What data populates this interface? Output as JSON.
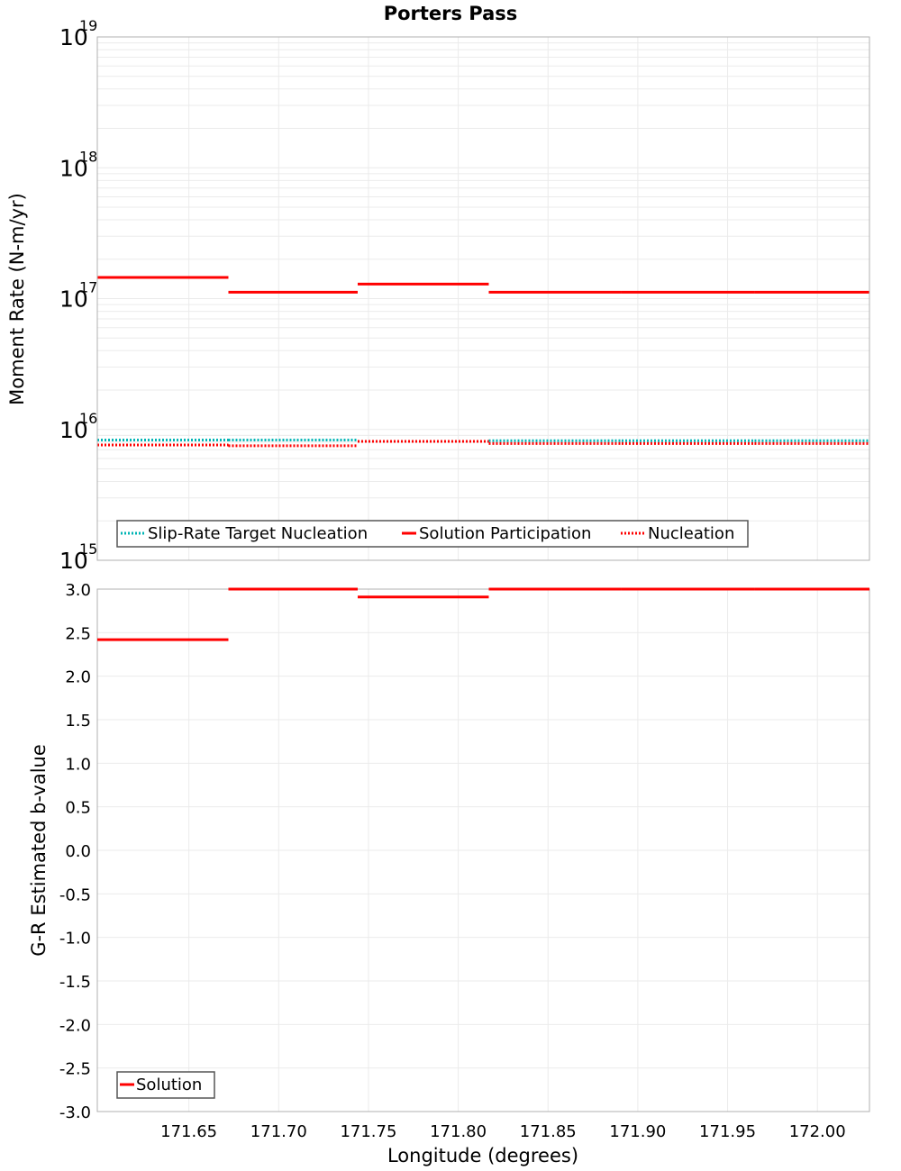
{
  "chart_data": [
    {
      "type": "line",
      "title": "Porters Pass",
      "xlabel": "",
      "ylabel": "Moment Rate (N-m/yr)",
      "yscale": "log",
      "ylim": [
        1000000000000000.0,
        1e+19
      ],
      "xlim": [
        171.599,
        172.029
      ],
      "y_ticks": [
        {
          "base": "10",
          "exp": "19",
          "value": 1e+19
        },
        {
          "base": "10",
          "exp": "18",
          "value": 1e+18
        },
        {
          "base": "10",
          "exp": "17",
          "value": 1e+17
        },
        {
          "base": "10",
          "exp": "16",
          "value": 1e+16
        },
        {
          "base": "10",
          "exp": "15",
          "value": 1000000000000000.0
        }
      ],
      "grid": true,
      "legend_position": "lower-left",
      "segment_edges": [
        171.599,
        171.672,
        171.744,
        171.817,
        171.891,
        171.965,
        172.029
      ],
      "series": [
        {
          "name": "Slip-Rate Target Nucleation",
          "color": "#00b4b4",
          "style": "dotted",
          "values": [
            8300000000000000.0,
            8300000000000000.0,
            8100000000000000.0,
            8200000000000000.0,
            8200000000000000.0,
            8200000000000000.0
          ]
        },
        {
          "name": "Solution Participation",
          "color": "#ff0000",
          "style": "solid",
          "values": [
            1.45e+17,
            1.12e+17,
            1.29e+17,
            1.12e+17,
            1.12e+17,
            1.12e+17
          ]
        },
        {
          "name": "Nucleation",
          "color": "#ff0000",
          "style": "dotted",
          "values": [
            7600000000000000.0,
            7500000000000000.0,
            8100000000000000.0,
            7800000000000000.0,
            7800000000000000.0,
            7800000000000000.0
          ]
        }
      ]
    },
    {
      "type": "line",
      "title": "",
      "xlabel": "Longitude (degrees)",
      "ylabel": "G-R Estimated b-value",
      "ylim": [
        -3.0,
        3.0
      ],
      "xlim": [
        171.599,
        172.029
      ],
      "x_ticks": [
        "171.65",
        "171.70",
        "171.75",
        "171.80",
        "171.85",
        "171.90",
        "171.95",
        "172.00"
      ],
      "x_tick_values": [
        171.65,
        171.7,
        171.75,
        171.8,
        171.85,
        171.9,
        171.95,
        172.0
      ],
      "y_ticks": [
        "3.0",
        "2.5",
        "2.0",
        "1.5",
        "1.0",
        "0.5",
        "0.0",
        "-0.5",
        "-1.0",
        "-1.5",
        "-2.0",
        "-2.5",
        "-3.0"
      ],
      "y_tick_values": [
        3.0,
        2.5,
        2.0,
        1.5,
        1.0,
        0.5,
        0.0,
        -0.5,
        -1.0,
        -1.5,
        -2.0,
        -2.5,
        -3.0
      ],
      "grid": true,
      "legend_position": "lower-left",
      "segment_edges": [
        171.599,
        171.672,
        171.744,
        171.817,
        171.891,
        171.965,
        172.029
      ],
      "series": [
        {
          "name": "Solution",
          "color": "#ff0000",
          "style": "solid",
          "values": [
            2.42,
            3.0,
            2.91,
            3.0,
            3.0,
            3.0
          ]
        }
      ]
    }
  ]
}
